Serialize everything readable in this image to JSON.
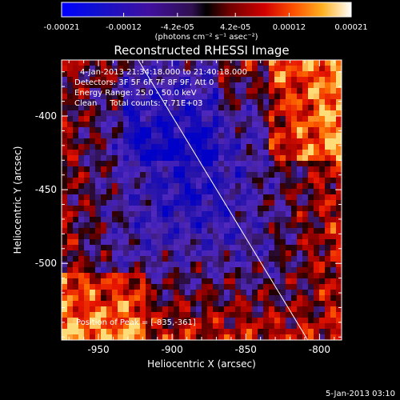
{
  "chart_data": {
    "type": "heatmap",
    "title": "Reconstructed RHESSI Image",
    "xlabel": "Heliocentric X (arcsec)",
    "ylabel": "Heliocentric Y (arcsec)",
    "xlim": [
      -975,
      -785
    ],
    "ylim": [
      -552,
      -362
    ],
    "x_ticks": [
      -950,
      -900,
      -850,
      -800
    ],
    "y_ticks": [
      -400,
      -450,
      -500
    ],
    "colorbar": {
      "range": [
        -0.00021,
        0.00021
      ],
      "ticks": [
        -0.00021,
        -0.00012,
        -4.2e-05,
        4.2e-05,
        0.00012,
        0.00021
      ],
      "tick_labels": [
        "-0.00021",
        "-0.00012",
        "-4.2e-05",
        "4.2e-05",
        "0.00012",
        "0.00021"
      ],
      "unit_label": "(photons cm⁻² s⁻¹ asec⁻²)"
    },
    "annotations": [
      "4-Jan-2013 21:34:18.000 to 21:40:18.000",
      "Detectors: 3F 5F 6F 7F 8F 9F, Att 0",
      "Energy Range: 25.0 - 50.0 keV",
      "Clean     Total counts: 7.71E+03"
    ],
    "peak_label": "Position of Peak = [-835,-361]",
    "limb_line": [
      [
        -923,
        -362
      ],
      [
        -808,
        -552
      ]
    ],
    "footer": "5-Jan-2013 03:10",
    "colors": {
      "limb": "#ffffff",
      "background": "#000000"
    }
  }
}
